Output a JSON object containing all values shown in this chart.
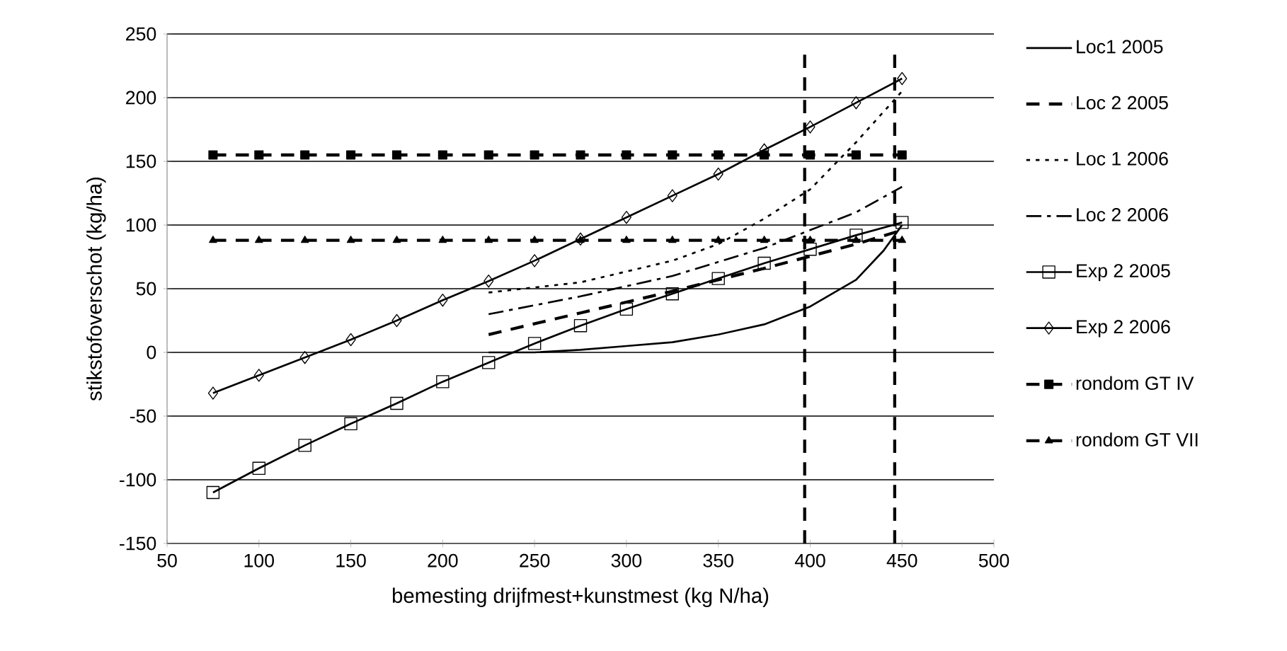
{
  "chart_data": {
    "type": "line",
    "xlabel": "bemesting drijfmest+kunstmest (kg N/ha)",
    "ylabel": "stikstofoverschot (kg/ha)",
    "xlim": [
      50,
      500
    ],
    "xticks": [
      50,
      100,
      150,
      200,
      250,
      300,
      350,
      400,
      450,
      500
    ],
    "ylim": [
      -150,
      250
    ],
    "yticks": [
      -150,
      -100,
      -50,
      0,
      50,
      100,
      150,
      200,
      250
    ],
    "grid": "y",
    "legend": "right",
    "series": [
      {
        "name": "Loc1 2005",
        "color": "#000000",
        "line_style": "solid",
        "marker": "none",
        "x": [
          225,
          250,
          275,
          300,
          325,
          350,
          375,
          400,
          425,
          440,
          450
        ],
        "values": [
          0,
          0,
          2,
          5,
          8,
          14,
          22,
          36,
          57,
          80,
          100
        ]
      },
      {
        "name": "Loc 2 2005",
        "color": "#000000",
        "line_style": "dashed",
        "marker": "none",
        "x": [
          225,
          275,
          325,
          375,
          425,
          450
        ],
        "values": [
          14,
          31,
          48,
          66,
          85,
          96
        ]
      },
      {
        "name": "Loc 1 2006",
        "color": "#000000",
        "line_style": "dotted",
        "marker": "none",
        "x": [
          225,
          275,
          325,
          350,
          375,
          400,
          425,
          450
        ],
        "values": [
          47,
          55,
          72,
          85,
          105,
          128,
          165,
          205
        ]
      },
      {
        "name": "Loc 2 2006",
        "color": "#000000",
        "line_style": "dashdot",
        "marker": "none",
        "x": [
          225,
          275,
          325,
          375,
          425,
          450
        ],
        "values": [
          30,
          44,
          60,
          82,
          110,
          130
        ]
      },
      {
        "name": "Exp 2 2005",
        "color": "#000000",
        "line_style": "solid",
        "marker": "square",
        "x": [
          75,
          100,
          125,
          150,
          175,
          200,
          225,
          250,
          275,
          300,
          325,
          350,
          375,
          400,
          425,
          450
        ],
        "values": [
          -110,
          -91,
          -73,
          -56,
          -40,
          -23,
          -8,
          7,
          21,
          34,
          46,
          58,
          70,
          81,
          92,
          102
        ]
      },
      {
        "name": "Exp 2 2006",
        "color": "#000000",
        "line_style": "solid",
        "marker": "diamond",
        "x": [
          75,
          100,
          125,
          150,
          175,
          200,
          225,
          250,
          275,
          300,
          325,
          350,
          375,
          400,
          425,
          450
        ],
        "values": [
          -32,
          -18,
          -4,
          10,
          25,
          41,
          56,
          72,
          89,
          106,
          123,
          140,
          159,
          177,
          196,
          215
        ]
      },
      {
        "name": "rondom GT IV",
        "color": "#000000",
        "line_style": "dashed",
        "marker": "square",
        "x": [
          75,
          100,
          125,
          150,
          175,
          200,
          225,
          250,
          275,
          300,
          325,
          350,
          375,
          400,
          425,
          450
        ],
        "values": [
          155,
          155,
          155,
          155,
          155,
          155,
          155,
          155,
          155,
          155,
          155,
          155,
          155,
          155,
          155,
          155
        ]
      },
      {
        "name": "rondom GT VII",
        "color": "#000000",
        "line_style": "dashed",
        "marker": "triangle",
        "x": [
          75,
          100,
          125,
          150,
          175,
          200,
          225,
          250,
          275,
          300,
          325,
          350,
          375,
          400,
          425,
          450
        ],
        "values": [
          88,
          88,
          88,
          88,
          88,
          88,
          88,
          88,
          88,
          88,
          88,
          88,
          88,
          88,
          88,
          88
        ]
      }
    ],
    "ref_lines": [
      {
        "axis": "x",
        "value": 397,
        "color": "#000000",
        "line_style": "dashed"
      },
      {
        "axis": "x",
        "value": 446,
        "color": "#000000",
        "line_style": "dashed"
      }
    ]
  }
}
